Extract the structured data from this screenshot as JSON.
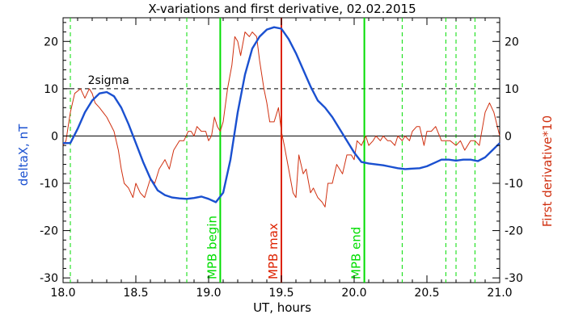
{
  "chart_data": {
    "type": "line",
    "title": "X-variations and first derivative, 02.02.2015",
    "xlabel": "UT, hours",
    "ylabel_left": "deltaX, nT",
    "ylabel_right": "First derivative*10",
    "xlim": [
      18.0,
      21.0
    ],
    "ylim": [
      -31,
      25
    ],
    "x_ticks": [
      18.0,
      18.5,
      19.0,
      19.5,
      20.0,
      20.5,
      21.0
    ],
    "x_tick_labels": [
      "18.0",
      "18.5",
      "19.0",
      "19.5",
      "20.0",
      "20.5",
      "21.0"
    ],
    "y_ticks": [
      20,
      10,
      0,
      -10,
      -20,
      -30
    ],
    "y_tick_labels": [
      "20",
      "10",
      "0",
      "-10",
      "-20",
      "-30"
    ],
    "threshold": {
      "y": 10,
      "label": "2sigma"
    },
    "zero_line": 0,
    "colors": {
      "deltaX": "#1a50d0",
      "derivative": "#d03010",
      "green": "#00dd00",
      "max": "#dd2200",
      "axis": "#000000"
    },
    "markers": [
      {
        "x": 19.08,
        "label": "MPB begin",
        "color": "#00dd00"
      },
      {
        "x": 19.5,
        "label": "MPB max",
        "color": "#dd2200"
      },
      {
        "x": 20.07,
        "label": "MPB end",
        "color": "#00dd00"
      }
    ],
    "dashed_vlines": [
      18.05,
      18.85,
      20.33,
      20.63,
      20.7,
      20.83
    ],
    "series": [
      {
        "key": "deltaX",
        "x": [
          18.0,
          18.05,
          18.1,
          18.15,
          18.2,
          18.25,
          18.3,
          18.35,
          18.4,
          18.45,
          18.5,
          18.55,
          18.6,
          18.65,
          18.7,
          18.75,
          18.8,
          18.85,
          18.9,
          18.95,
          19.0,
          19.05,
          19.1,
          19.15,
          19.2,
          19.25,
          19.3,
          19.35,
          19.4,
          19.45,
          19.5,
          19.55,
          19.6,
          19.65,
          19.7,
          19.75,
          19.8,
          19.85,
          19.9,
          19.95,
          20.0,
          20.05,
          20.1,
          20.15,
          20.2,
          20.25,
          20.3,
          20.35,
          20.4,
          20.45,
          20.5,
          20.55,
          20.6,
          20.65,
          20.7,
          20.75,
          20.8,
          20.85,
          20.9,
          20.95,
          21.0
        ],
        "y": [
          -1.5,
          -1.5,
          1.5,
          5,
          7.5,
          9,
          9.3,
          8.4,
          6,
          2.5,
          -1.5,
          -5.5,
          -9,
          -11.5,
          -12.5,
          -13,
          -13.2,
          -13.3,
          -13.1,
          -12.8,
          -13.3,
          -14,
          -12,
          -5,
          5,
          13,
          18.5,
          21,
          22.5,
          23,
          22.7,
          20.5,
          17.5,
          14,
          10.5,
          7.5,
          6,
          4,
          1.5,
          -1,
          -3.5,
          -5.5,
          -5.8,
          -6,
          -6.2,
          -6.5,
          -6.8,
          -7,
          -6.9,
          -6.8,
          -6.4,
          -5.7,
          -5,
          -5,
          -5.2,
          -5,
          -5,
          -5.3,
          -4.5,
          -3,
          -1.5
        ]
      },
      {
        "key": "derivative",
        "x": [
          18.0,
          18.02,
          18.05,
          18.08,
          18.12,
          18.15,
          18.18,
          18.2,
          18.22,
          18.25,
          18.3,
          18.35,
          18.38,
          18.4,
          18.42,
          18.45,
          18.48,
          18.5,
          18.53,
          18.56,
          18.6,
          18.63,
          18.66,
          18.7,
          18.73,
          18.76,
          18.8,
          18.83,
          18.86,
          18.88,
          18.9,
          18.92,
          18.95,
          18.98,
          19.0,
          19.02,
          19.04,
          19.06,
          19.08,
          19.1,
          19.13,
          19.16,
          19.18,
          19.2,
          19.22,
          19.25,
          19.28,
          19.3,
          19.33,
          19.35,
          19.38,
          19.4,
          19.42,
          19.45,
          19.48,
          19.5,
          19.52,
          19.55,
          19.58,
          19.6,
          19.62,
          19.65,
          19.67,
          19.7,
          19.72,
          19.75,
          19.78,
          19.8,
          19.82,
          19.85,
          19.88,
          19.9,
          19.92,
          19.95,
          19.98,
          20.0,
          20.02,
          20.05,
          20.08,
          20.1,
          20.13,
          20.15,
          20.18,
          20.2,
          20.23,
          20.25,
          20.28,
          20.3,
          20.33,
          20.35,
          20.38,
          20.4,
          20.43,
          20.45,
          20.48,
          20.5,
          20.53,
          20.56,
          20.6,
          20.63,
          20.66,
          20.7,
          20.73,
          20.76,
          20.8,
          20.83,
          20.86,
          20.9,
          20.93,
          20.96,
          21.0
        ],
        "y": [
          -2,
          -1,
          5,
          9,
          10,
          8,
          10,
          9,
          7,
          6,
          4,
          1,
          -3,
          -7,
          -10,
          -11,
          -13,
          -10,
          -12,
          -13,
          -9,
          -10,
          -7,
          -5,
          -7,
          -3,
          -1,
          -1,
          1,
          1,
          0,
          2,
          1,
          1,
          -1,
          0,
          4,
          2,
          1,
          3,
          10,
          15,
          21,
          20,
          17,
          22,
          21,
          22,
          21,
          16,
          10,
          7,
          3,
          3,
          6,
          1,
          -2,
          -7,
          -12,
          -13,
          -4,
          -8,
          -7,
          -12,
          -11,
          -13,
          -14,
          -15,
          -10,
          -10,
          -6,
          -7,
          -8,
          -4,
          -4,
          -5,
          -1,
          -2,
          0,
          -2,
          -1,
          0,
          -1,
          0,
          -1,
          -1,
          -2,
          0,
          -1,
          0,
          -1,
          1,
          2,
          2,
          -2,
          1,
          1,
          2,
          -1,
          -1,
          -1,
          -2,
          -1,
          -3,
          -1,
          -1,
          -2,
          5,
          7,
          5,
          0
        ]
      }
    ]
  }
}
